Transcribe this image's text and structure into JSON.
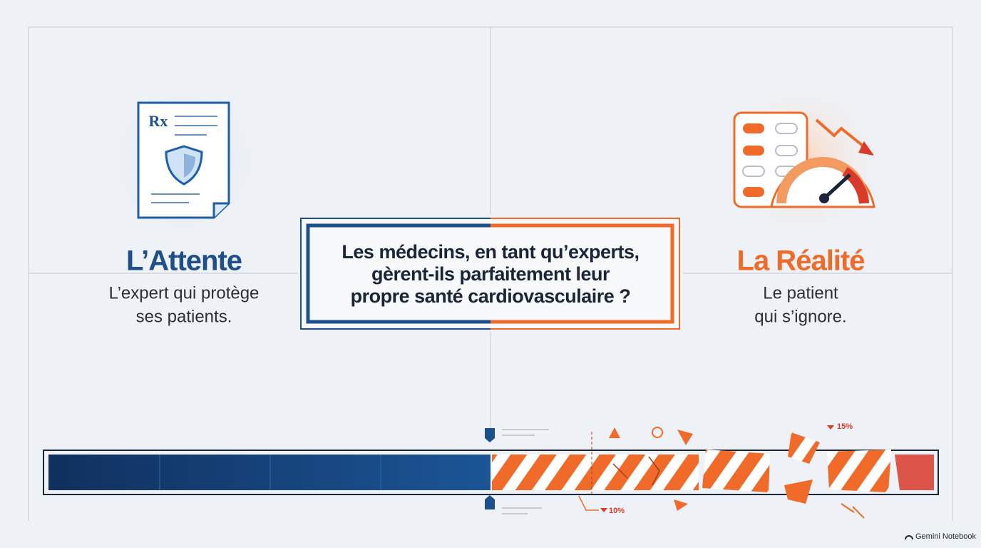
{
  "left": {
    "title": "L’Attente",
    "subtitle_lines": [
      "L’expert qui protège",
      "ses patients."
    ],
    "icon_label": "Rx"
  },
  "center": {
    "question_lines": [
      "Les médecins, en tant qu’experts,",
      "gèrent-ils parfaitement leur",
      "propre santé cardiovasculaire ?"
    ]
  },
  "right": {
    "title": "La Réalité",
    "subtitle_lines": [
      "Le patient",
      "qui s’ignore."
    ]
  },
  "bar": {
    "annotations": [
      "15%",
      "10%"
    ]
  },
  "footer": {
    "brand": "Gemini Notebook"
  }
}
